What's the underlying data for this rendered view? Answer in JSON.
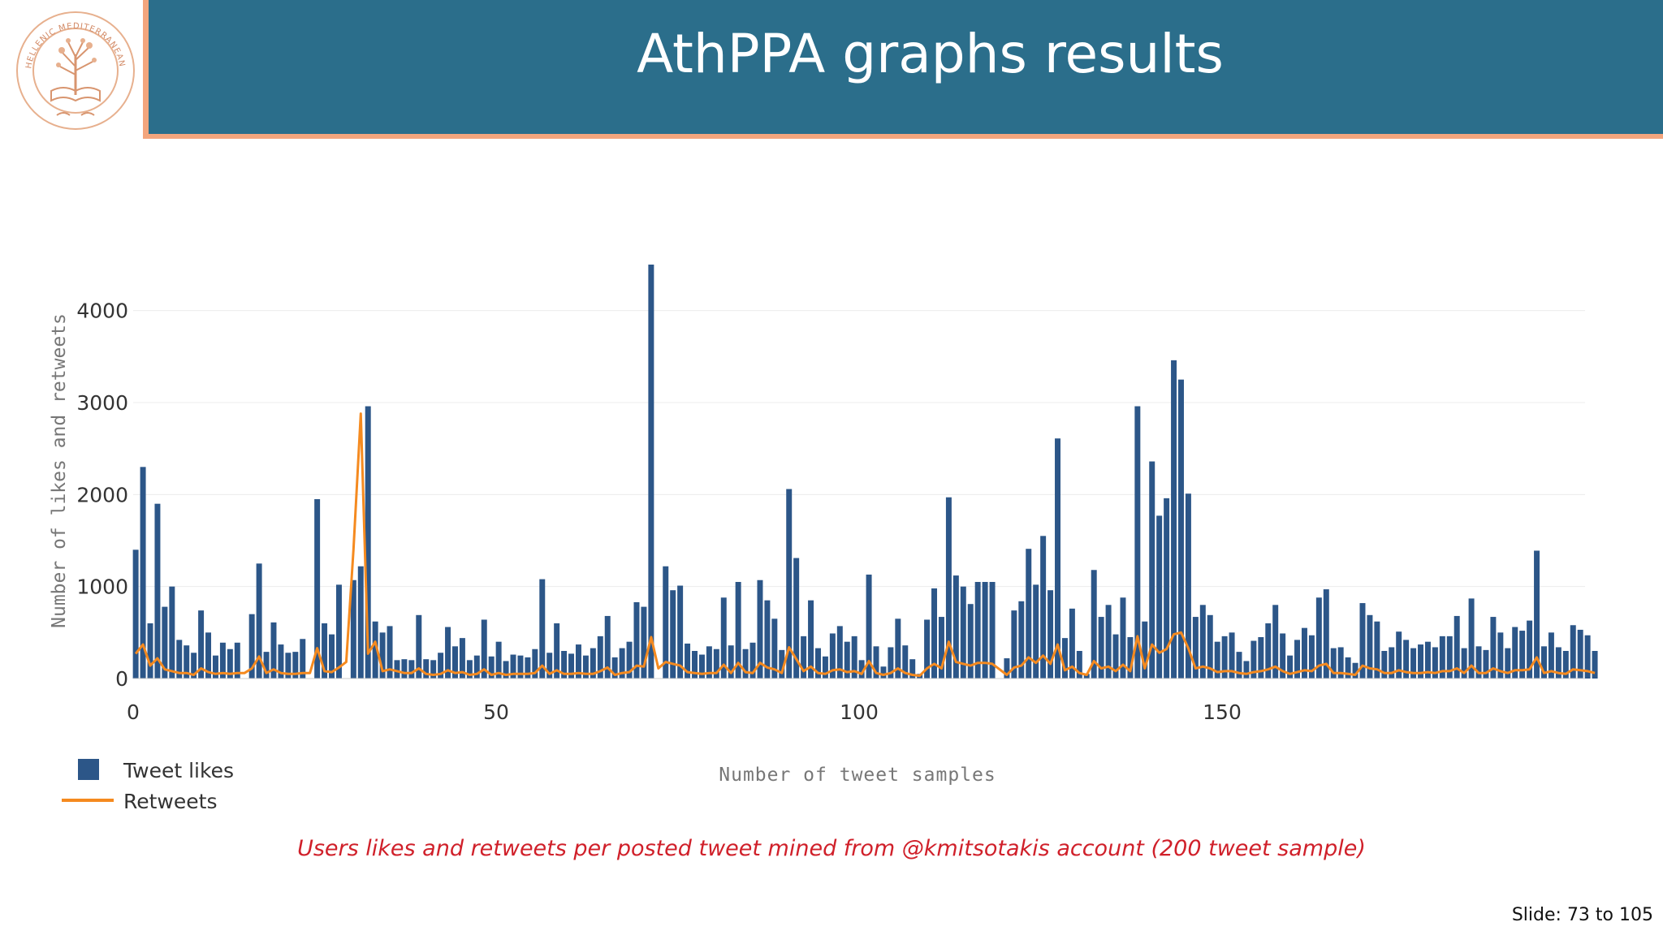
{
  "slide": {
    "title": "AthPPA graphs results",
    "caption": "Users likes and retweets per posted tweet mined from @kmitsotakis account (200 tweet sample)",
    "slide_number": "Slide:  73  to 105",
    "logo_text": "HELLENIC MEDITERRANEAN UNIVERSITY"
  },
  "colors": {
    "header": "#2b6e8b",
    "accent": "#f3a57d",
    "likes": "#2c5688",
    "retweets": "#f58a1f",
    "caption": "#d0202a"
  },
  "chart_data": {
    "type": "bar",
    "title": "",
    "xlabel": "Number of tweet samples",
    "ylabel": "Number of likes and retweets",
    "xlim": [
      0,
      200
    ],
    "ylim": [
      0,
      4500
    ],
    "xticks": [
      0,
      50,
      100,
      150
    ],
    "yticks": [
      0,
      1000,
      2000,
      3000,
      4000
    ],
    "grid": true,
    "legend_position": "bottom-left",
    "series": [
      {
        "name": "Tweet likes",
        "kind": "bar",
        "values": [
          1400,
          2300,
          600,
          1900,
          780,
          1000,
          420,
          360,
          280,
          740,
          500,
          250,
          390,
          320,
          390,
          0,
          700,
          1250,
          290,
          610,
          370,
          280,
          290,
          430,
          0,
          1950,
          600,
          480,
          1020,
          0,
          1070,
          1220,
          2960,
          620,
          500,
          570,
          200,
          210,
          200,
          690,
          210,
          200,
          280,
          560,
          350,
          440,
          200,
          250,
          640,
          240,
          400,
          190,
          260,
          250,
          230,
          320,
          1080,
          280,
          600,
          300,
          270,
          370,
          250,
          330,
          460,
          680,
          230,
          330,
          400,
          830,
          780,
          4500,
          0,
          1220,
          960,
          1010,
          380,
          300,
          260,
          350,
          320,
          880,
          360,
          1050,
          320,
          390,
          1070,
          850,
          650,
          310,
          2060,
          1310,
          460,
          850,
          330,
          240,
          490,
          570,
          400,
          460,
          200,
          1130,
          350,
          130,
          340,
          650,
          360,
          210,
          50,
          640,
          980,
          670,
          1970,
          1120,
          1000,
          810,
          1050,
          1050,
          1050,
          0,
          220,
          740,
          840,
          1410,
          1020,
          1550,
          960,
          2610,
          440,
          760,
          300,
          50,
          1180,
          670,
          800,
          480,
          880,
          450,
          2960,
          620,
          2360,
          1770,
          1960,
          3460,
          3250,
          2010,
          670,
          800,
          690,
          400,
          460,
          500,
          290,
          190,
          410,
          450,
          600,
          800,
          490,
          250,
          420,
          550,
          470,
          880,
          970,
          330,
          340,
          230,
          170,
          820,
          690,
          620,
          300,
          340,
          510,
          420,
          330,
          370,
          400,
          340,
          460,
          460,
          680,
          330,
          870,
          350,
          310,
          670,
          500,
          330,
          560,
          520,
          630,
          1390,
          350,
          500,
          340,
          300,
          580,
          530,
          470,
          300
        ]
      },
      {
        "name": "Retweets",
        "kind": "line",
        "values": [
          270,
          370,
          140,
          220,
          100,
          80,
          60,
          60,
          40,
          110,
          70,
          50,
          60,
          50,
          60,
          60,
          110,
          240,
          60,
          100,
          60,
          50,
          50,
          60,
          60,
          330,
          80,
          70,
          120,
          180,
          1400,
          2880,
          270,
          400,
          80,
          100,
          80,
          60,
          60,
          110,
          50,
          40,
          50,
          90,
          60,
          70,
          40,
          50,
          100,
          40,
          60,
          40,
          50,
          50,
          50,
          60,
          140,
          50,
          90,
          50,
          50,
          60,
          50,
          50,
          80,
          120,
          40,
          60,
          70,
          140,
          130,
          450,
          110,
          180,
          160,
          140,
          70,
          60,
          50,
          60,
          60,
          150,
          60,
          170,
          70,
          60,
          170,
          120,
          100,
          60,
          340,
          210,
          80,
          130,
          60,
          50,
          90,
          100,
          70,
          80,
          50,
          190,
          60,
          40,
          60,
          110,
          60,
          40,
          30,
          110,
          160,
          110,
          400,
          180,
          160,
          140,
          170,
          170,
          160,
          100,
          40,
          120,
          140,
          230,
          170,
          250,
          160,
          370,
          90,
          130,
          60,
          40,
          190,
          110,
          130,
          80,
          150,
          80,
          460,
          110,
          370,
          280,
          320,
          480,
          500,
          330,
          110,
          130,
          110,
          70,
          80,
          80,
          60,
          50,
          70,
          80,
          100,
          130,
          80,
          50,
          70,
          90,
          80,
          140,
          160,
          60,
          60,
          50,
          40,
          140,
          110,
          100,
          60,
          60,
          90,
          70,
          60,
          60,
          70,
          60,
          80,
          80,
          110,
          60,
          140,
          60,
          60,
          110,
          80,
          60,
          90,
          90,
          100,
          230,
          60,
          80,
          60,
          50,
          100,
          90,
          80,
          60
        ]
      }
    ]
  }
}
